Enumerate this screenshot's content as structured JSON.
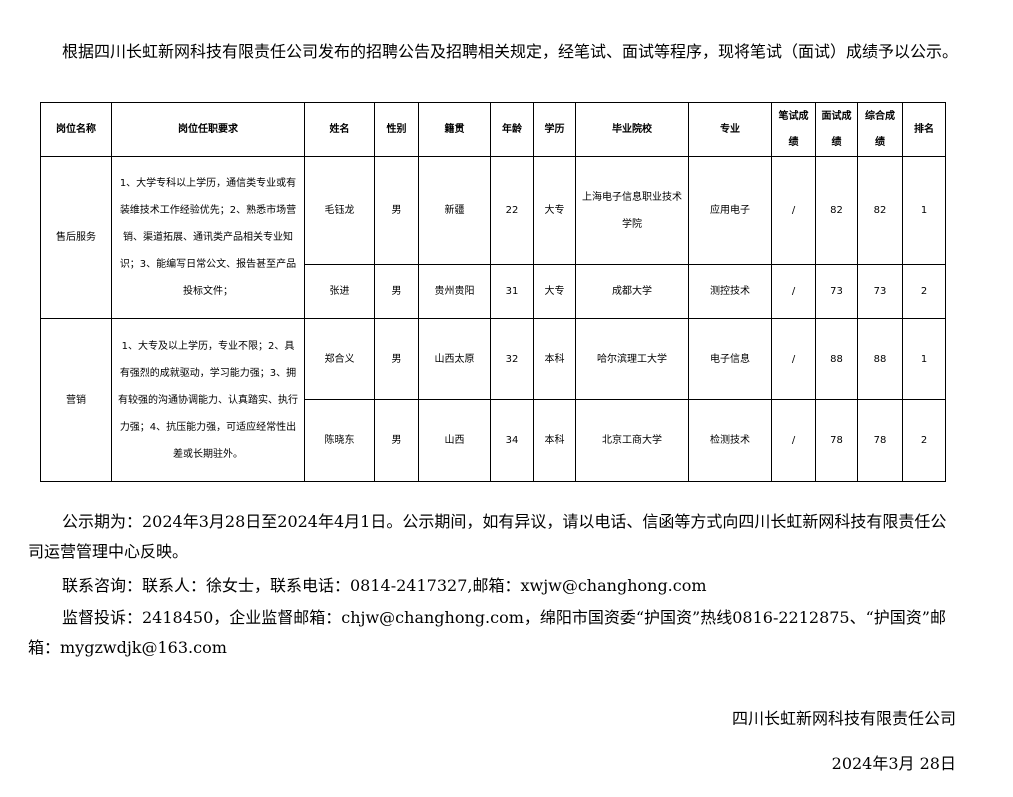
{
  "intro": "根据四川长虹新网科技有限责任公司发布的招聘公告及招聘相关规定，经笔试、面试等程序，现将笔试（面试）成绩予以公示。",
  "table": {
    "headers": [
      "岗位名称",
      "岗位任职要求",
      "姓名",
      "性别",
      "籍贯",
      "年龄",
      "学历",
      "毕业院校",
      "专业",
      "笔试成绩",
      "面试成绩",
      "综合成绩",
      "排名"
    ],
    "groups": [
      {
        "position": "售后服务",
        "requirements": "1、大学专科以上学历，通信类专业或有装维技术工作经验优先；2、熟悉市场营销、渠道拓展、通讯类产品相关专业知识；3、能编写日常公文、报告甚至产品投标文件；",
        "rows": [
          {
            "name": "毛钰龙",
            "gender": "男",
            "origin": "新疆",
            "age": "22",
            "education": "大专",
            "school": "上海电子信息职业技术学院",
            "major": "应用电子",
            "written": "/",
            "interview": "82",
            "total": "82",
            "rank": "1"
          },
          {
            "name": "张进",
            "gender": "男",
            "origin": "贵州贵阳",
            "age": "31",
            "education": "大专",
            "school": "成都大学",
            "major": "测控技术",
            "written": "/",
            "interview": "73",
            "total": "73",
            "rank": "2"
          }
        ]
      },
      {
        "position": "营销",
        "requirements": "1、大专及以上学历，专业不限；2、具有强烈的成就驱动，学习能力强；3、拥有较强的沟通协调能力、认真踏实、执行力强；4、抗压能力强，可适应经常性出差或长期驻外。",
        "rows": [
          {
            "name": "郑合义",
            "gender": "男",
            "origin": "山西太原",
            "age": "32",
            "education": "本科",
            "school": "哈尔滨理工大学",
            "major": "电子信息",
            "written": "/",
            "interview": "88",
            "total": "88",
            "rank": "1"
          },
          {
            "name": "陈晓东",
            "gender": "男",
            "origin": "山西",
            "age": "34",
            "education": "本科",
            "school": "北京工商大学",
            "major": "检测技术",
            "written": "/",
            "interview": "78",
            "total": "78",
            "rank": "2"
          }
        ]
      }
    ]
  },
  "notice_period": "公示期为：2024年3月28日至2024年4月1日。公示期间，如有异议，请以电话、信函等方式向四川长虹新网科技有限责任公司运营管理中心反映。",
  "contact": "联系咨询：联系人：徐女士，联系电话：0814-2417327,邮箱：xwjw@changhong.com",
  "complaint": "监督投诉：2418450，企业监督邮箱：chjw@changhong.com，绵阳市国资委“护国资”热线0816-2212875、“护国资”邮箱：mygzwdjk@163.com",
  "signature": "四川长虹新网科技有限责任公司",
  "date": "2024年3月 28日"
}
